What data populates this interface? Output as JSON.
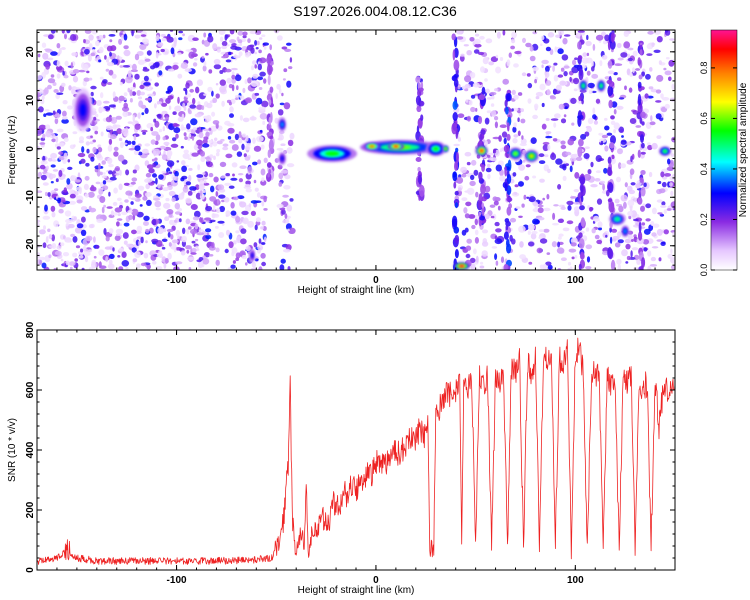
{
  "figure_title": "S197.2026.004.08.12.C36",
  "chart_data": [
    {
      "type": "heatmap",
      "xlabel": "Height of straight line (km)",
      "ylabel": "Frequency (Hz)",
      "xlim": [
        -170,
        150
      ],
      "ylim": [
        -25,
        24.5
      ],
      "x_ticks": [
        "-100",
        "0",
        "100"
      ],
      "y_ticks": [
        "-20",
        "-10",
        "0",
        "10",
        "20"
      ],
      "colorbar": {
        "label": "Normalized spectral amplitude",
        "range": [
          0,
          0.95
        ],
        "ticks": [
          "0.0",
          "0.2",
          "0.4",
          "0.6",
          "0.8"
        ],
        "colors": [
          "#ffffff",
          "#e6c7ff",
          "#8a2be2",
          "#0000ff",
          "#00ffff",
          "#00ff00",
          "#ffff00",
          "#ff8000",
          "#ff0000",
          "#ff1493"
        ]
      },
      "background_speckle": [
        {
          "x_range": [
            -170,
            -55
          ],
          "density": "high"
        },
        {
          "x_range": [
            -50,
            -42
          ],
          "density": "medium"
        },
        {
          "x_range": [
            40,
            150
          ],
          "density": "medium"
        }
      ],
      "features": [
        {
          "x": -147,
          "y": 8,
          "w": 10,
          "h": 9,
          "amplitude": 0.3
        },
        {
          "x": -47,
          "y": 5,
          "w": 4,
          "h": 3,
          "amplitude": 0.4
        },
        {
          "x": -47,
          "y": -2,
          "w": 4,
          "h": 3,
          "amplitude": 0.3
        },
        {
          "x": -62,
          "y": -22,
          "w": 3,
          "h": 3,
          "amplitude": 0.3
        },
        {
          "x": -22,
          "y": -1,
          "w": 25,
          "h": 3.5,
          "amplitude": 0.55
        },
        {
          "x": 12,
          "y": 0.3,
          "w": 40,
          "h": 3,
          "amplitude": 0.6
        },
        {
          "x": -2,
          "y": 0.5,
          "w": 8,
          "h": 1.6,
          "amplitude": 0.8
        },
        {
          "x": 10,
          "y": 0.5,
          "w": 8,
          "h": 1.6,
          "amplitude": 0.85
        },
        {
          "x": 30,
          "y": 0,
          "w": 10,
          "h": 3,
          "amplitude": 0.55
        },
        {
          "x": 35,
          "y": 0,
          "w": 3,
          "h": 1.5,
          "amplitude": 0.7
        },
        {
          "x": 43,
          "y": -24.2,
          "w": 8,
          "h": 1.6,
          "amplitude": 0.9
        },
        {
          "x": 53,
          "y": -0.4,
          "w": 6,
          "h": 2.2,
          "amplitude": 0.85
        },
        {
          "x": 70,
          "y": -1,
          "w": 7,
          "h": 2.5,
          "amplitude": 0.6
        },
        {
          "x": 78,
          "y": -1.5,
          "w": 7,
          "h": 2.5,
          "amplitude": 0.7
        },
        {
          "x": 104,
          "y": 13,
          "w": 4,
          "h": 2.5,
          "amplitude": 0.55
        },
        {
          "x": 113,
          "y": 13,
          "w": 4,
          "h": 2.5,
          "amplitude": 0.55
        },
        {
          "x": 121,
          "y": -14.5,
          "w": 8,
          "h": 2.5,
          "amplitude": 0.5
        },
        {
          "x": 125,
          "y": -17,
          "w": 4,
          "h": 2.5,
          "amplitude": 0.4
        },
        {
          "x": 145,
          "y": -0.5,
          "w": 6,
          "h": 2,
          "amplitude": 0.55
        }
      ],
      "streaks": [
        {
          "x": -53,
          "y_range": [
            -6,
            22
          ],
          "amplitude": 0.15
        },
        {
          "x": 22,
          "y_range": [
            -10,
            16
          ],
          "amplitude": 0.2
        },
        {
          "x": 40,
          "y_range": [
            -25,
            24
          ],
          "amplitude": 0.25
        },
        {
          "x": 53,
          "y_range": [
            -15,
            12
          ],
          "amplitude": 0.2
        },
        {
          "x": 66,
          "y_range": [
            -25,
            12
          ],
          "amplitude": 0.25
        },
        {
          "x": 103,
          "y_range": [
            -25,
            24
          ],
          "amplitude": 0.2
        },
        {
          "x": 118,
          "y_range": [
            -25,
            24
          ],
          "amplitude": 0.2
        },
        {
          "x": 133,
          "y_range": [
            -25,
            24
          ],
          "amplitude": 0.2
        }
      ]
    },
    {
      "type": "line",
      "xlabel": "Height of straight line (km)",
      "ylabel": "SNR (10 * v/v)",
      "xlim": [
        -170,
        150
      ],
      "ylim": [
        0,
        800
      ],
      "x_ticks": [
        "-100",
        "0",
        "100"
      ],
      "y_ticks": [
        "0",
        "200",
        "400",
        "600",
        "800"
      ],
      "color": "#ee2222",
      "series": [
        {
          "x": [
            -170,
            -160,
            -155,
            -150,
            -140,
            -120,
            -100,
            -80,
            -60,
            -52,
            -48,
            -46,
            -44,
            -43,
            -42,
            -41,
            -40,
            -38,
            -36,
            -35,
            -34,
            -33,
            -32,
            -30,
            -28,
            -26,
            -24,
            -22,
            -20,
            -18,
            -16,
            -14,
            -12,
            -10,
            -8,
            -6,
            -4,
            -2,
            0,
            2,
            4,
            6,
            8,
            10,
            12,
            14,
            16,
            18,
            20,
            22,
            24,
            26,
            27,
            28,
            29,
            30,
            31,
            34,
            36,
            38,
            40,
            42,
            43,
            44,
            46,
            48,
            50,
            52,
            54,
            56,
            58,
            60,
            62,
            64,
            66,
            68,
            70,
            72,
            74,
            76,
            78,
            80,
            82,
            84,
            86,
            88,
            90,
            92,
            94,
            96,
            98,
            100,
            102,
            104,
            106,
            108,
            110,
            112,
            114,
            116,
            118,
            120,
            122,
            124,
            126,
            128,
            130,
            132,
            134,
            136,
            138,
            140,
            142,
            144,
            146,
            148,
            150
          ],
          "y": [
            30,
            40,
            70,
            40,
            30,
            30,
            30,
            30,
            35,
            40,
            100,
            180,
            360,
            610,
            200,
            80,
            50,
            120,
            100,
            300,
            80,
            60,
            150,
            120,
            180,
            160,
            150,
            220,
            220,
            200,
            260,
            250,
            280,
            260,
            310,
            300,
            330,
            320,
            360,
            350,
            370,
            360,
            400,
            390,
            390,
            410,
            430,
            450,
            430,
            470,
            440,
            470,
            80,
            75,
            70,
            520,
            530,
            570,
            590,
            580,
            600,
            640,
            90,
            610,
            600,
            650,
            90,
            640,
            610,
            650,
            80,
            660,
            620,
            650,
            80,
            680,
            660,
            700,
            90,
            690,
            660,
            700,
            80,
            700,
            700,
            720,
            90,
            700,
            690,
            730,
            60,
            720,
            750,
            660,
            60,
            640,
            660,
            640,
            80,
            640,
            620,
            610,
            70,
            650,
            620,
            640,
            80,
            620,
            610,
            620,
            90,
            620,
            480,
            590,
            600,
            620,
            620
          ]
        }
      ]
    }
  ]
}
